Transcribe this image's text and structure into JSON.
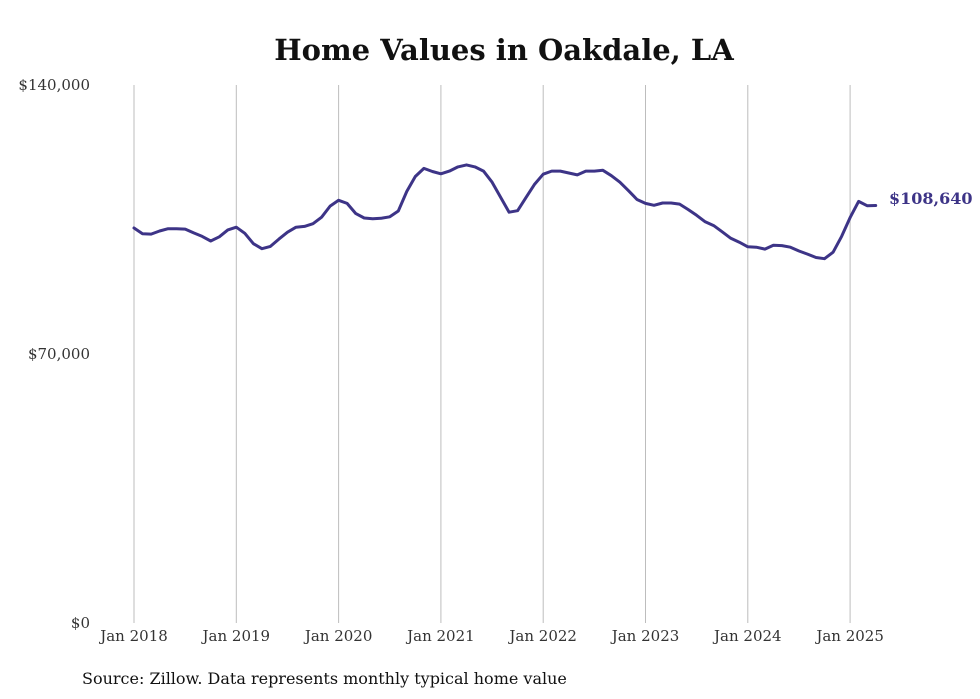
{
  "chart_data": {
    "type": "line",
    "title": "Home Values in Oakdale, LA",
    "source_note": "Source: Zillow. Data represents monthly typical home value",
    "xlabel": "",
    "ylabel": "",
    "ylim": [
      0,
      140000
    ],
    "y_ticks": [
      0,
      70000,
      140000
    ],
    "y_tick_labels": [
      "$0",
      "$70,000",
      "$140,000"
    ],
    "x_ticks": [
      "2018-01",
      "2019-01",
      "2020-01",
      "2021-01",
      "2022-01",
      "2023-01",
      "2024-01",
      "2025-01"
    ],
    "x_tick_labels": [
      "Jan 2018",
      "Jan 2019",
      "Jan 2020",
      "Jan 2021",
      "Jan 2022",
      "Jan 2023",
      "Jan 2024",
      "Jan 2025"
    ],
    "grid": "vertical",
    "line_color": "#3d3487",
    "end_label": "$108,640",
    "series": [
      {
        "x": [
          "2018-01",
          "2018-02",
          "2018-03",
          "2018-04",
          "2018-05",
          "2018-06",
          "2018-07",
          "2018-08",
          "2018-09",
          "2018-10",
          "2018-11",
          "2018-12",
          "2019-01",
          "2019-02",
          "2019-03",
          "2019-04",
          "2019-05",
          "2019-06",
          "2019-07",
          "2019-08",
          "2019-09",
          "2019-10",
          "2019-11",
          "2019-12",
          "2020-01",
          "2020-02",
          "2020-03",
          "2020-04",
          "2020-05",
          "2020-06",
          "2020-07",
          "2020-08",
          "2020-09",
          "2020-10",
          "2020-11",
          "2020-12",
          "2021-01",
          "2021-02",
          "2021-03",
          "2021-04",
          "2021-05",
          "2021-06",
          "2021-07",
          "2021-08",
          "2021-09",
          "2021-10",
          "2021-11",
          "2021-12",
          "2022-01",
          "2022-02",
          "2022-03",
          "2022-04",
          "2022-05",
          "2022-06",
          "2022-07",
          "2022-08",
          "2022-09",
          "2022-10",
          "2022-11",
          "2022-12",
          "2023-01",
          "2023-02",
          "2023-03",
          "2023-04",
          "2023-05",
          "2023-06",
          "2023-07",
          "2023-08",
          "2023-09",
          "2023-10",
          "2023-11",
          "2023-12",
          "2024-01",
          "2024-02",
          "2024-03",
          "2024-04",
          "2024-05",
          "2024-06",
          "2024-07",
          "2024-08",
          "2024-09",
          "2024-10",
          "2024-11",
          "2024-12",
          "2025-01",
          "2025-02",
          "2025-03",
          "2025-04"
        ],
        "values": [
          102800,
          101300,
          101200,
          102000,
          102600,
          102600,
          102500,
          101500,
          100600,
          99400,
          100500,
          102300,
          103000,
          101400,
          98700,
          97400,
          98000,
          99900,
          101700,
          103000,
          103200,
          103900,
          105600,
          108500,
          110000,
          109200,
          106600,
          105400,
          105200,
          105300,
          105700,
          107200,
          112300,
          116200,
          118300,
          117500,
          116900,
          117600,
          118700,
          119200,
          118700,
          117600,
          114700,
          110800,
          106900,
          107300,
          110800,
          114200,
          116800,
          117600,
          117600,
          117100,
          116600,
          117600,
          117600,
          117800,
          116400,
          114700,
          112500,
          110200,
          109200,
          108700,
          109300,
          109300,
          109000,
          107600,
          106100,
          104400,
          103400,
          101800,
          100100,
          99100,
          97900,
          97800,
          97300,
          98300,
          98200,
          97800,
          96800,
          96000,
          95100,
          94800,
          96500,
          100600,
          105500,
          109700,
          108600,
          108640
        ]
      }
    ]
  }
}
